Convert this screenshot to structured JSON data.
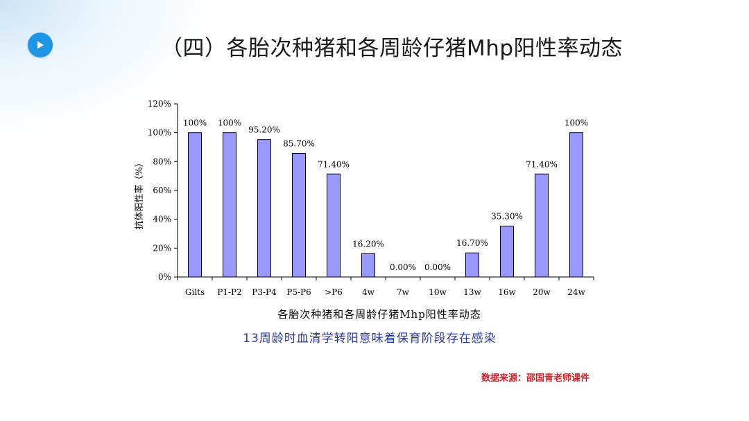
{
  "slide": {
    "title": "（四）各胎次种猪和各周龄仔猪Mhp阳性率动态",
    "note": "13周龄时血清学转阳意味着保育阶段存在感染",
    "source": "数据来源：邵国青老师课件",
    "accent_color": "#1e96e6",
    "note_color": "#2b3aa8",
    "source_color": "#d81f26",
    "play_icon": "play-icon"
  },
  "chart_data": {
    "type": "bar",
    "title": "各胎次种猪和各周龄仔猪Mhp阳性率动态",
    "xlabel": "各胎次种猪和各周龄仔猪Mhp阳性率动态",
    "ylabel": "抗体阳性率（%）",
    "categories": [
      "Gilts",
      "P1-P2",
      "P3-P4",
      "P5-P6",
      ">P6",
      "4w",
      "7w",
      "10w",
      "13w",
      "16w",
      "20w",
      "24w"
    ],
    "values": [
      100,
      100,
      95.2,
      85.7,
      71.4,
      16.2,
      0,
      0,
      16.7,
      35.3,
      71.4,
      100
    ],
    "data_labels": [
      "100%",
      "100%",
      "95.20%",
      "85.70%",
      "71.40%",
      "16.20%",
      "0.00%",
      "0.00%",
      "16.70%",
      "35.30%",
      "71.40%",
      "100%"
    ],
    "ylim": [
      0,
      120
    ],
    "yticks": [
      0,
      20,
      40,
      60,
      80,
      100,
      120
    ],
    "ytick_labels": [
      "0%",
      "20%",
      "40%",
      "60%",
      "80%",
      "100%",
      "120%"
    ],
    "grid": false,
    "legend": "none",
    "bar_color": "#9999ff",
    "bar_edge_color": "#000000"
  }
}
